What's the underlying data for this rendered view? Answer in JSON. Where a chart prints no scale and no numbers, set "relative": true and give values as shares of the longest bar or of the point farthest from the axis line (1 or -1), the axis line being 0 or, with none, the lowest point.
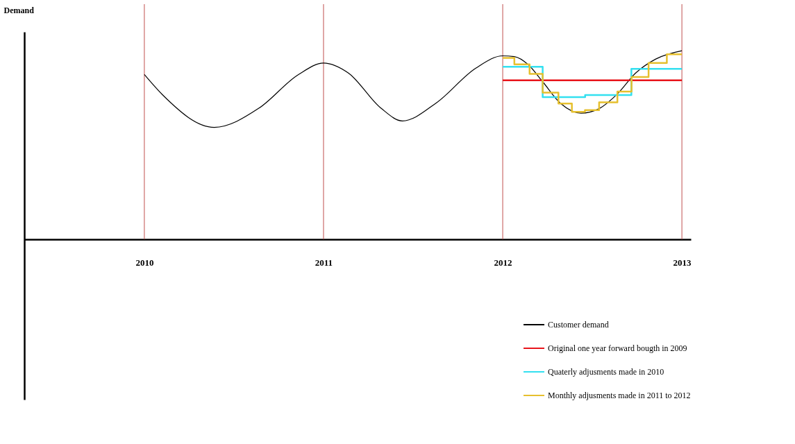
{
  "chart_data": {
    "type": "line",
    "relative": true,
    "ylabel": "Demand",
    "xlim": [
      2009.33,
      2013.05
    ],
    "xticks": [
      2010,
      2011,
      2012,
      2013
    ],
    "tick_labels": "x",
    "grid": false,
    "legend": "bottom right",
    "marker": "none",
    "ref_lines": [
      {
        "axis": "x",
        "value": 2010,
        "color": "#c0504d"
      },
      {
        "axis": "x",
        "value": 2011,
        "color": "#c0504d"
      },
      {
        "axis": "x",
        "value": 2012,
        "color": "#c0504d"
      },
      {
        "axis": "x",
        "value": 2013,
        "color": "#c0504d"
      }
    ],
    "series": [
      {
        "name": "Customer demand",
        "color": "#000000",
        "x": [
          2010,
          2010.1,
          2010.39,
          2010.64,
          2010.86,
          2011,
          2011.14,
          2011.32,
          2011.44,
          2011.63,
          2011.85,
          2012,
          2012.065,
          2012.144,
          2012.223,
          2012.324,
          2012.437,
          2012.538,
          2012.64,
          2012.741,
          2012.854,
          2013
        ],
        "values": [
          0.874,
          0.768,
          0.594,
          0.696,
          0.874,
          0.935,
          0.881,
          0.696,
          0.628,
          0.724,
          0.908,
          0.973,
          0.969,
          0.925,
          0.836,
          0.72,
          0.669,
          0.693,
          0.771,
          0.881,
          0.956,
          1
        ]
      },
      {
        "name": "Original one year forward bougth in 2009",
        "type": "step",
        "color": "#e8141b",
        "x": [
          2012,
          2013
        ],
        "values": [
          0.843,
          0.843
        ]
      },
      {
        "name": "Quaterly adjusments made in 2010",
        "type": "step",
        "color": "#33e0f0",
        "x": [
          2012,
          2012.223,
          2012.46,
          2012.718,
          2013
        ],
        "values": [
          0.915,
          0.754,
          0.765,
          0.904,
          0.904
        ]
      },
      {
        "name": "Monthly adjusments made in 2011 to 2012",
        "type": "step",
        "color": "#e6c02e",
        "x": [
          2012,
          2012.065,
          2012.15,
          2012.223,
          2012.311,
          2012.386,
          2012.459,
          2012.538,
          2012.64,
          2012.719,
          2012.814,
          2012.916,
          2013
        ],
        "values": [
          0.962,
          0.928,
          0.877,
          0.778,
          0.72,
          0.676,
          0.685,
          0.727,
          0.784,
          0.861,
          0.935,
          0.981,
          0.981
        ]
      }
    ]
  }
}
